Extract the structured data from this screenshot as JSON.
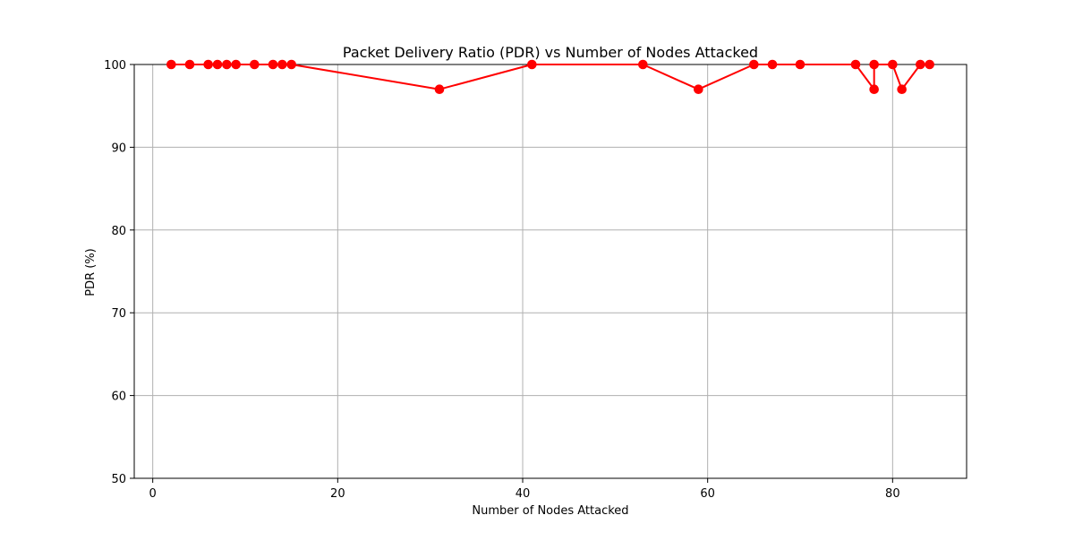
{
  "chart_data": {
    "type": "line",
    "title": "Packet Delivery Ratio (PDR) vs Number of Nodes Attacked",
    "xlabel": "Number of Nodes Attacked",
    "ylabel": "PDR (%)",
    "xlim": [
      -2,
      88
    ],
    "ylim": [
      50,
      100
    ],
    "xticks": [
      0,
      20,
      40,
      60,
      80
    ],
    "yticks": [
      50,
      60,
      70,
      80,
      90,
      100
    ],
    "grid": true,
    "series": [
      {
        "color": "#ff0000",
        "marker": "circle",
        "x": [
          2,
          4,
          6,
          7,
          8,
          9,
          11,
          13,
          14,
          15,
          31,
          41,
          53,
          59,
          65,
          67,
          70,
          76,
          78,
          78,
          80,
          81,
          83,
          84
        ],
        "y": [
          100,
          100,
          100,
          100,
          100,
          100,
          100,
          100,
          100,
          100,
          97,
          100,
          100,
          97,
          100,
          100,
          100,
          100,
          97,
          100,
          100,
          97,
          100,
          100
        ]
      }
    ]
  }
}
